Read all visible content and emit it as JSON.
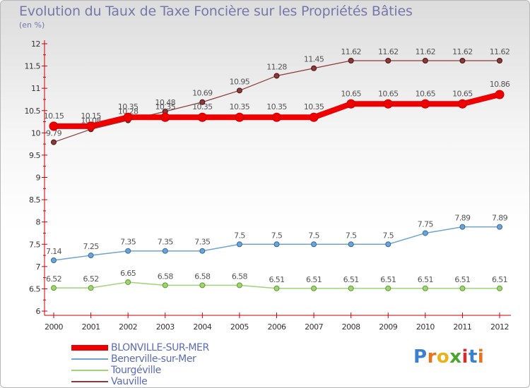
{
  "title": "Evolution du Taux de Taxe Foncière sur les Propriétés Bâties",
  "unit": "(en %)",
  "logo": {
    "letters": [
      "P",
      "r",
      "o",
      "x",
      "i",
      "t",
      "i"
    ],
    "colors": [
      "#3a7fd0",
      "#e8731c",
      "#e8b21c",
      "#4aa532",
      "#d22c2c",
      "#3a7fd0",
      "#e8731c"
    ]
  },
  "chart_data": {
    "type": "line",
    "x": [
      "2000",
      "2001",
      "2002",
      "2003",
      "2004",
      "2005",
      "2006",
      "2007",
      "2008",
      "2009",
      "2010",
      "2011",
      "2012"
    ],
    "ylim": [
      6,
      12
    ],
    "yticks": [
      "6",
      "6.5",
      "7",
      "7.5",
      "8",
      "8.5",
      "9",
      "9.5",
      "10",
      "10.5",
      "11",
      "11.5",
      "12"
    ],
    "grid": false,
    "legend_position": "bottom-left",
    "series": [
      {
        "name": "BLONVILLE-SUR-MER",
        "color": "#ee0000",
        "values": [
          10.15,
          10.15,
          10.35,
          10.35,
          10.35,
          10.35,
          10.35,
          10.35,
          10.65,
          10.65,
          10.65,
          10.65,
          10.86
        ],
        "labels": [
          "10.15",
          "10.15",
          "10.35",
          "10.35",
          "10.35",
          "10.35",
          "10.35",
          "10.35",
          "10.65",
          "10.65",
          "10.65",
          "10.65",
          "10.86"
        ]
      },
      {
        "name": "Benerville-sur-Mer",
        "color": "#6fa3d3",
        "values": [
          7.14,
          7.25,
          7.35,
          7.35,
          7.35,
          7.5,
          7.5,
          7.5,
          7.5,
          7.5,
          7.75,
          7.89,
          7.89
        ],
        "labels": [
          "7.14",
          "7.25",
          "7.35",
          "7.35",
          "7.35",
          "7.5",
          "7.5",
          "7.5",
          "7.5",
          "7.5",
          "7.75",
          "7.89",
          "7.89"
        ]
      },
      {
        "name": "Tourgéville",
        "color": "#9fd373",
        "values": [
          6.52,
          6.52,
          6.65,
          6.58,
          6.58,
          6.58,
          6.51,
          6.51,
          6.51,
          6.51,
          6.51,
          6.51,
          6.51
        ],
        "labels": [
          "6.52",
          "6.52",
          "6.65",
          "6.58",
          "6.58",
          "6.58",
          "6.51",
          "6.51",
          "6.51",
          "6.51",
          "6.51",
          "6.51",
          "6.51"
        ]
      },
      {
        "name": "Vauville",
        "color": "#8b3a3a",
        "values": [
          9.79,
          10.08,
          10.28,
          10.48,
          10.69,
          10.95,
          11.28,
          11.45,
          11.62,
          11.62,
          11.62,
          11.62,
          11.62
        ],
        "labels": [
          "9.79",
          "10.08",
          "10.28",
          "10.48",
          "10.69",
          "10.95",
          "11.28",
          "11.45",
          "11.62",
          "11.62",
          "11.62",
          "11.62",
          "11.62"
        ]
      }
    ]
  }
}
